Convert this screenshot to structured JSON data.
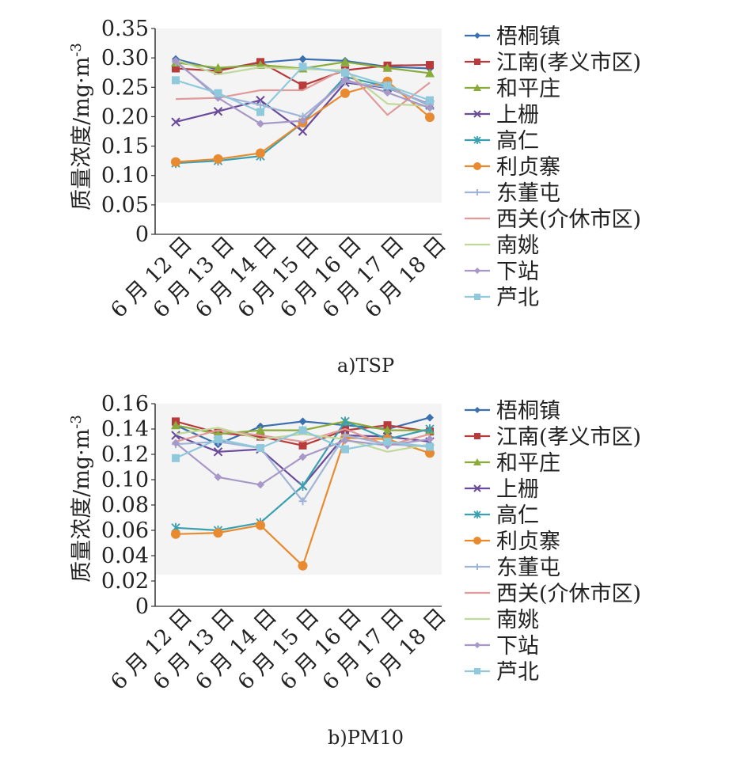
{
  "chart_data": [
    {
      "type": "line",
      "caption": "a)TSP",
      "ylabel": "质量浓度/mg·m",
      "ylabel_sup": "-3",
      "ylim": [
        0,
        0.35
      ],
      "yticks": [
        "0",
        "0.05",
        "0.10",
        "0.15",
        "0.20",
        "0.25",
        "0.30",
        "0.35"
      ],
      "categories": [
        "6 月 12 日",
        "6 月 13 日",
        "6 月 14 日",
        "6 月 15 日",
        "6 月 16 日",
        "6 月 17 日",
        "6 月 18 日"
      ],
      "series": [
        {
          "name": "梧桐镇",
          "color": "#3a6fb0",
          "marker": "diamond",
          "values": [
            0.298,
            0.28,
            0.292,
            0.298,
            0.295,
            0.285,
            0.282
          ]
        },
        {
          "name": "江南(孝义市区)",
          "color": "#b83a3a",
          "marker": "square",
          "values": [
            0.282,
            0.278,
            0.293,
            0.253,
            0.279,
            0.287,
            0.288
          ]
        },
        {
          "name": "和平庄",
          "color": "#8aaa3a",
          "marker": "triangle",
          "values": [
            0.292,
            0.283,
            0.288,
            0.282,
            0.293,
            0.283,
            0.274
          ]
        },
        {
          "name": "上栅",
          "color": "#6a4a9a",
          "marker": "x",
          "values": [
            0.191,
            0.209,
            0.228,
            0.175,
            0.258,
            0.249,
            0.221
          ]
        },
        {
          "name": "高仁",
          "color": "#3aa0b0",
          "marker": "star",
          "values": [
            0.121,
            0.125,
            0.133,
            0.19,
            0.268,
            0.251,
            0.219
          ]
        },
        {
          "name": "利贞寨",
          "color": "#e88a30",
          "marker": "circle",
          "values": [
            0.123,
            0.128,
            0.138,
            0.19,
            0.24,
            0.26,
            0.199
          ]
        },
        {
          "name": "东董屯",
          "color": "#a0b4d8",
          "marker": "plus",
          "values": [
            0.293,
            0.236,
            0.22,
            0.2,
            0.26,
            0.25,
            0.22
          ]
        },
        {
          "name": "西关(介休市区)",
          "color": "#e09a9a",
          "marker": "none",
          "values": [
            0.23,
            0.232,
            0.245,
            0.245,
            0.282,
            0.203,
            0.258
          ]
        },
        {
          "name": "南姚",
          "color": "#c0d89a",
          "marker": "none",
          "values": [
            0.297,
            0.272,
            0.284,
            0.281,
            0.279,
            0.222,
            0.218
          ]
        },
        {
          "name": "下站",
          "color": "#a898c8",
          "marker": "diamond",
          "values": [
            0.295,
            0.232,
            0.188,
            0.193,
            0.263,
            0.241,
            0.215
          ]
        },
        {
          "name": "芦北",
          "color": "#90c8dc",
          "marker": "square",
          "values": [
            0.262,
            0.24,
            0.208,
            0.285,
            0.275,
            0.253,
            0.228
          ]
        }
      ]
    },
    {
      "type": "line",
      "caption": "b)PM10",
      "ylabel": "质量浓度/mg·m",
      "ylabel_sup": "-3",
      "ylim": [
        0,
        0.16
      ],
      "yticks": [
        "0",
        "0.02",
        "0.04",
        "0.06",
        "0.08",
        "0.10",
        "0.12",
        "0.14",
        "0.16"
      ],
      "categories": [
        "6 月 12 日",
        "6 月 13 日",
        "6 月 14 日",
        "6 月 15 日",
        "6 月 16 日",
        "6 月 17 日",
        "6 月 18 日"
      ],
      "series": [
        {
          "name": "梧桐镇",
          "color": "#3a6fb0",
          "marker": "diamond",
          "values": [
            0.143,
            0.128,
            0.142,
            0.146,
            0.143,
            0.14,
            0.149
          ]
        },
        {
          "name": "江南(孝义市区)",
          "color": "#b83a3a",
          "marker": "square",
          "values": [
            0.146,
            0.137,
            0.134,
            0.127,
            0.139,
            0.143,
            0.138
          ]
        },
        {
          "name": "和平庄",
          "color": "#8aaa3a",
          "marker": "triangle",
          "values": [
            0.143,
            0.136,
            0.139,
            0.139,
            0.146,
            0.139,
            0.139
          ]
        },
        {
          "name": "上栅",
          "color": "#6a4a9a",
          "marker": "x",
          "values": [
            0.135,
            0.122,
            0.124,
            0.095,
            0.135,
            0.134,
            0.13
          ]
        },
        {
          "name": "高仁",
          "color": "#3aa0b0",
          "marker": "star",
          "values": [
            0.062,
            0.06,
            0.066,
            0.095,
            0.146,
            0.132,
            0.14
          ]
        },
        {
          "name": "利贞寨",
          "color": "#e88a30",
          "marker": "circle",
          "values": [
            0.057,
            0.058,
            0.064,
            0.032,
            0.133,
            0.132,
            0.121
          ]
        },
        {
          "name": "东董屯",
          "color": "#a0b4d8",
          "marker": "plus",
          "values": [
            0.128,
            0.13,
            0.125,
            0.083,
            0.135,
            0.128,
            0.126
          ]
        },
        {
          "name": "西关(介休市区)",
          "color": "#e09a9a",
          "marker": "none",
          "values": [
            0.13,
            0.139,
            0.135,
            0.13,
            0.14,
            0.127,
            0.136
          ]
        },
        {
          "name": "南姚",
          "color": "#c0d89a",
          "marker": "none",
          "values": [
            0.136,
            0.141,
            0.132,
            0.136,
            0.132,
            0.122,
            0.128
          ]
        },
        {
          "name": "下站",
          "color": "#a898c8",
          "marker": "diamond",
          "values": [
            0.129,
            0.102,
            0.096,
            0.118,
            0.131,
            0.127,
            0.132
          ]
        },
        {
          "name": "芦北",
          "color": "#90c8dc",
          "marker": "square",
          "values": [
            0.117,
            0.132,
            0.125,
            0.139,
            0.124,
            0.13,
            0.126
          ]
        }
      ]
    }
  ]
}
